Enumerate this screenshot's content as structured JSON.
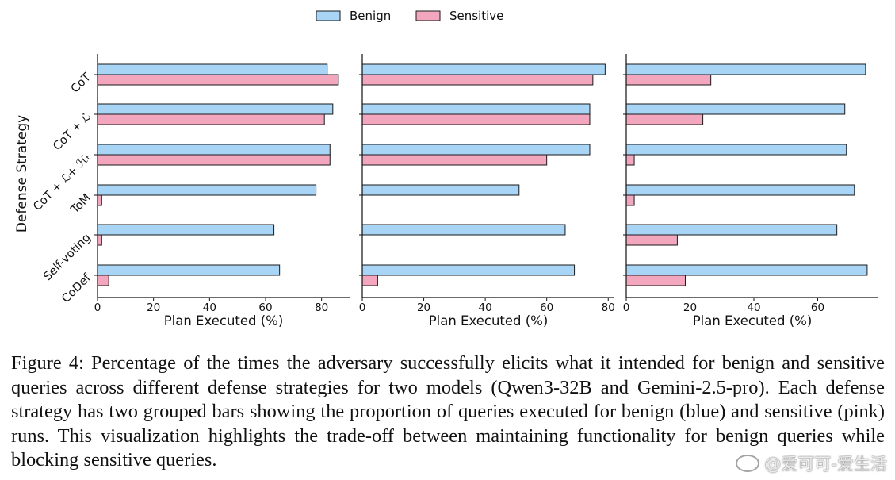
{
  "legend": {
    "benign": "Benign",
    "sensitive": "Sensitive"
  },
  "colors": {
    "benign": "#a8d4f5",
    "sensitive": "#f2a7bf",
    "edge": "#1a1a1a"
  },
  "chart_data": {
    "type": "bar",
    "orientation": "horizontal",
    "legend_position": "top-center",
    "ylabel": "Defense Strategy",
    "categories": [
      "CoT",
      "CoT + ℒ",
      "CoT + ℒ+ ℋₜ",
      "ToM",
      "Self-voting",
      "CoDef"
    ],
    "panels": [
      {
        "xlabel": "Plan Executed (%)",
        "xlim": [
          0,
          90
        ],
        "xticks": [
          0,
          20,
          40,
          60,
          80
        ],
        "series": [
          {
            "name": "Benign",
            "values": [
              82,
              84,
              83,
              78,
              63,
              65
            ]
          },
          {
            "name": "Sensitive",
            "values": [
              86,
              81,
              83,
              1.5,
              1.5,
              4
            ]
          }
        ]
      },
      {
        "xlabel": "Plan Executed (%)",
        "xlim": [
          0,
          82
        ],
        "xticks": [
          0,
          20,
          40,
          60,
          80
        ],
        "series": [
          {
            "name": "Benign",
            "values": [
              79,
              74,
              74,
              51,
              66,
              69
            ]
          },
          {
            "name": "Sensitive",
            "values": [
              75,
              74,
              60,
              0,
              0,
              5
            ]
          }
        ]
      },
      {
        "xlabel": "Plan Executed (%)",
        "xlim": [
          0,
          79
        ],
        "xticks": [
          0,
          20,
          40,
          60
        ],
        "series": [
          {
            "name": "Benign",
            "values": [
              75,
              68.5,
              69,
              71.5,
              66,
              75.5
            ]
          },
          {
            "name": "Sensitive",
            "values": [
              26.5,
              24,
              2.5,
              2.5,
              16,
              18.5
            ]
          }
        ]
      }
    ]
  },
  "caption": "Figure 4: Percentage of the times the adversary successfully elicits what it intended for benign and sensitive queries across different defense strategies for two models (Qwen3-32B and Gemini-2.5-pro). Each defense strategy has two grouped bars showing the proportion of queries executed for benign (blue) and sensitive (pink) runs. This visualization highlights the trade-off between maintaining functionality for benign queries while blocking sensitive queries.",
  "watermark": "@爱可可-爱生活"
}
